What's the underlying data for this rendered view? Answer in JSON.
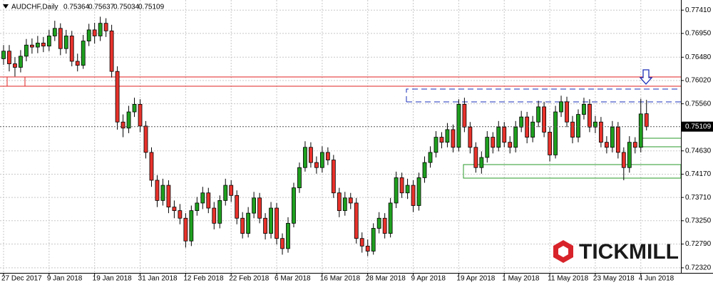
{
  "chart_data": {
    "type": "candlestick",
    "title": "AUDCHF,Daily",
    "watermark": "TICKMILL",
    "up_color": "#1fa01f",
    "down_color": "#e8322b",
    "grid": true,
    "categories": [
      "27 Dec 2017",
      null,
      null,
      null,
      null,
      null,
      null,
      null,
      "9 Jan 2018",
      null,
      null,
      null,
      null,
      null,
      null,
      null,
      "19 Jan 2018",
      null,
      null,
      null,
      null,
      null,
      null,
      null,
      "31 Jan 2018",
      null,
      null,
      null,
      null,
      null,
      null,
      null,
      "12 Feb 2018",
      null,
      null,
      null,
      null,
      null,
      null,
      null,
      "22 Feb 2018",
      null,
      null,
      null,
      null,
      null,
      null,
      null,
      "6 Mar 2018",
      null,
      null,
      null,
      null,
      null,
      null,
      null,
      "16 Mar 2018",
      null,
      null,
      null,
      null,
      null,
      null,
      null,
      "28 Mar 2018",
      null,
      null,
      null,
      null,
      null,
      null,
      null,
      "9 Apr 2018",
      null,
      null,
      null,
      null,
      null,
      null,
      null,
      "19 Apr 2018",
      null,
      null,
      null,
      null,
      null,
      null,
      null,
      "1 May 2018",
      null,
      null,
      null,
      null,
      null,
      null,
      null,
      "11 May 2018",
      null,
      null,
      null,
      null,
      null,
      null,
      null,
      "23 May 2018",
      null,
      null,
      null,
      null,
      null,
      null,
      null,
      "4 Jun 2018",
      null
    ],
    "open": [
      0.7645,
      0.766,
      0.7635,
      0.7628,
      0.765,
      0.7672,
      0.7668,
      0.7676,
      0.767,
      0.769,
      0.7705,
      0.7665,
      0.769,
      0.764,
      0.7632,
      0.768,
      0.7702,
      0.769,
      0.7715,
      0.77,
      0.762,
      0.752,
      0.7508,
      0.754,
      0.7555,
      0.7512,
      0.746,
      0.7405,
      0.7365,
      0.7395,
      0.7352,
      0.7345,
      0.733,
      0.7285,
      0.7345,
      0.736,
      0.738,
      0.735,
      0.732,
      0.7365,
      0.7395,
      0.7375,
      0.733,
      0.73,
      0.734,
      0.737,
      0.733,
      0.73,
      0.735,
      0.729,
      0.727,
      0.732,
      0.739,
      0.743,
      0.747,
      0.744,
      0.743,
      0.746,
      0.7445,
      0.738,
      0.7345,
      0.737,
      0.736,
      0.729,
      0.7275,
      0.7265,
      0.731,
      0.733,
      0.73,
      0.736,
      0.741,
      0.738,
      0.7395,
      0.7355,
      0.741,
      0.744,
      0.746,
      0.749,
      0.748,
      0.7505,
      0.747,
      0.7555,
      0.751,
      0.747,
      0.743,
      0.745,
      0.749,
      0.747,
      0.751,
      0.748,
      0.747,
      0.751,
      0.753,
      0.749,
      0.752,
      0.755,
      0.75,
      0.7455,
      0.754,
      0.756,
      0.752,
      0.749,
      0.7535,
      0.7555,
      0.751,
      0.752,
      0.748,
      0.747,
      0.751,
      0.746,
      0.743,
      0.748,
      0.747,
      0.75364
    ],
    "high": [
      0.7672,
      0.7672,
      0.7648,
      0.7662,
      0.7684,
      0.7685,
      0.769,
      0.7688,
      0.7702,
      0.772,
      0.7715,
      0.7702,
      0.77,
      0.7655,
      0.7692,
      0.7714,
      0.7716,
      0.7728,
      0.7725,
      0.7712,
      0.763,
      0.7535,
      0.7552,
      0.7568,
      0.7565,
      0.7522,
      0.747,
      0.7415,
      0.7408,
      0.7405,
      0.7365,
      0.7358,
      0.734,
      0.7355,
      0.7372,
      0.7392,
      0.739,
      0.7362,
      0.7375,
      0.7408,
      0.7405,
      0.7385,
      0.7342,
      0.7352,
      0.7382,
      0.738,
      0.734,
      0.7362,
      0.736,
      0.73,
      0.7332,
      0.74,
      0.744,
      0.7482,
      0.748,
      0.7452,
      0.7472,
      0.747,
      0.7455,
      0.739,
      0.7382,
      0.738,
      0.737,
      0.7302,
      0.7288,
      0.732,
      0.7342,
      0.734,
      0.737,
      0.7422,
      0.742,
      0.7408,
      0.7405,
      0.742,
      0.7452,
      0.7472,
      0.7502,
      0.75,
      0.7518,
      0.7515,
      0.7565,
      0.7568,
      0.752,
      0.748,
      0.7462,
      0.7502,
      0.75,
      0.7522,
      0.752,
      0.7492,
      0.7522,
      0.7542,
      0.754,
      0.7532,
      0.7562,
      0.756,
      0.751,
      0.7552,
      0.7572,
      0.757,
      0.7532,
      0.7545,
      0.7568,
      0.7565,
      0.7532,
      0.753,
      0.7492,
      0.7522,
      0.752,
      0.747,
      0.7492,
      0.749,
      0.7566,
      0.75637
    ],
    "low": [
      0.7633,
      0.762,
      0.761,
      0.7618,
      0.764,
      0.7655,
      0.7656,
      0.7658,
      0.766,
      0.768,
      0.7652,
      0.7655,
      0.763,
      0.762,
      0.7625,
      0.767,
      0.7675,
      0.768,
      0.7688,
      0.7608,
      0.7505,
      0.749,
      0.7498,
      0.753,
      0.75,
      0.7448,
      0.7392,
      0.7352,
      0.7355,
      0.734,
      0.733,
      0.7318,
      0.7272,
      0.7275,
      0.7335,
      0.7348,
      0.734,
      0.7308,
      0.731,
      0.7355,
      0.7362,
      0.7318,
      0.729,
      0.7292,
      0.733,
      0.732,
      0.7288,
      0.729,
      0.7278,
      0.7258,
      0.7262,
      0.7312,
      0.738,
      0.7422,
      0.743,
      0.7418,
      0.742,
      0.7435,
      0.737,
      0.7332,
      0.7335,
      0.7348,
      0.728,
      0.7262,
      0.7255,
      0.7258,
      0.73,
      0.729,
      0.7292,
      0.735,
      0.737,
      0.7368,
      0.7342,
      0.7345,
      0.74,
      0.743,
      0.745,
      0.7468,
      0.747,
      0.746,
      0.7462,
      0.75,
      0.7458,
      0.742,
      0.7418,
      0.744,
      0.7458,
      0.7462,
      0.747,
      0.7458,
      0.746,
      0.75,
      0.7478,
      0.748,
      0.751,
      0.749,
      0.7442,
      0.7448,
      0.753,
      0.751,
      0.7478,
      0.748,
      0.7525,
      0.75,
      0.7498,
      0.747,
      0.7458,
      0.746,
      0.7448,
      0.7405,
      0.742,
      0.7458,
      0.746,
      0.75034
    ],
    "close": [
      0.766,
      0.7635,
      0.7628,
      0.765,
      0.7672,
      0.7668,
      0.7676,
      0.767,
      0.769,
      0.7705,
      0.7665,
      0.769,
      0.764,
      0.7632,
      0.768,
      0.7702,
      0.769,
      0.7715,
      0.77,
      0.762,
      0.752,
      0.7508,
      0.754,
      0.7555,
      0.7512,
      0.746,
      0.7405,
      0.7365,
      0.7395,
      0.7352,
      0.7345,
      0.733,
      0.7285,
      0.7345,
      0.736,
      0.738,
      0.735,
      0.732,
      0.7365,
      0.7395,
      0.7375,
      0.733,
      0.73,
      0.734,
      0.737,
      0.733,
      0.73,
      0.735,
      0.729,
      0.727,
      0.732,
      0.739,
      0.743,
      0.747,
      0.744,
      0.743,
      0.746,
      0.7445,
      0.738,
      0.7345,
      0.737,
      0.736,
      0.729,
      0.7275,
      0.7265,
      0.731,
      0.733,
      0.73,
      0.736,
      0.741,
      0.738,
      0.7395,
      0.7355,
      0.741,
      0.744,
      0.746,
      0.749,
      0.748,
      0.7505,
      0.747,
      0.7555,
      0.751,
      0.747,
      0.743,
      0.745,
      0.749,
      0.747,
      0.751,
      0.748,
      0.747,
      0.751,
      0.753,
      0.749,
      0.752,
      0.755,
      0.75,
      0.7455,
      0.754,
      0.756,
      0.752,
      0.749,
      0.7535,
      0.7555,
      0.751,
      0.752,
      0.748,
      0.747,
      0.751,
      0.746,
      0.743,
      0.748,
      0.747,
      0.7536,
      0.75109
    ],
    "ylim": [
      0.7222,
      0.7761
    ],
    "yticks": [
      {
        "value": 0.7741,
        "label": "0.77410"
      },
      {
        "value": 0.7695,
        "label": "0.76950"
      },
      {
        "value": 0.7648,
        "label": "0.76480"
      },
      {
        "value": 0.7602,
        "label": "0.76020"
      },
      {
        "value": 0.7556,
        "label": "0.75560"
      },
      {
        "value": 0.7463,
        "label": "0.74630"
      },
      {
        "value": 0.7417,
        "label": "0.74170"
      },
      {
        "value": 0.7371,
        "label": "0.73710"
      },
      {
        "value": 0.7325,
        "label": "0.73250"
      },
      {
        "value": 0.7279,
        "label": "0.72790"
      },
      {
        "value": 0.7232,
        "label": "0.72320"
      }
    ]
  }
}
